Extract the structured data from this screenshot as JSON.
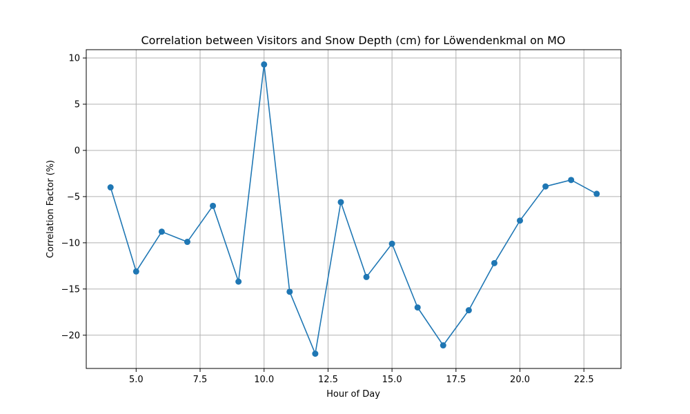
{
  "chart_data": {
    "type": "line",
    "title": "Correlation between Visitors and Snow Depth (cm) for Löwendenkmal on MO",
    "xlabel": "Hour of Day",
    "ylabel": "Correlation Factor (%)",
    "xlim": [
      3.05,
      23.95
    ],
    "ylim": [
      -23.6,
      10.9
    ],
    "xticks": [
      5.0,
      7.5,
      10.0,
      12.5,
      15.0,
      17.5,
      20.0,
      22.5
    ],
    "xtick_labels": [
      "5.0",
      "7.5",
      "10.0",
      "12.5",
      "15.0",
      "17.5",
      "20.0",
      "22.5"
    ],
    "yticks": [
      -20,
      -15,
      -10,
      -5,
      0,
      5,
      10
    ],
    "ytick_labels": [
      "−20",
      "−15",
      "−10",
      "−5",
      "0",
      "5",
      "10"
    ],
    "grid": true,
    "color": "#1f77b4",
    "series": [
      {
        "x": [
          4,
          5,
          6,
          7,
          8,
          9,
          10,
          11,
          12,
          13,
          14,
          15,
          16,
          17,
          18,
          19,
          20,
          21,
          22,
          23
        ],
        "y": [
          -4.0,
          -13.1,
          -8.8,
          -9.9,
          -6.0,
          -14.2,
          9.3,
          -15.3,
          -22.0,
          -5.6,
          -13.7,
          -10.1,
          -17.0,
          -21.1,
          -17.3,
          -12.2,
          -7.6,
          -3.9,
          -3.2,
          -4.7
        ]
      }
    ]
  }
}
